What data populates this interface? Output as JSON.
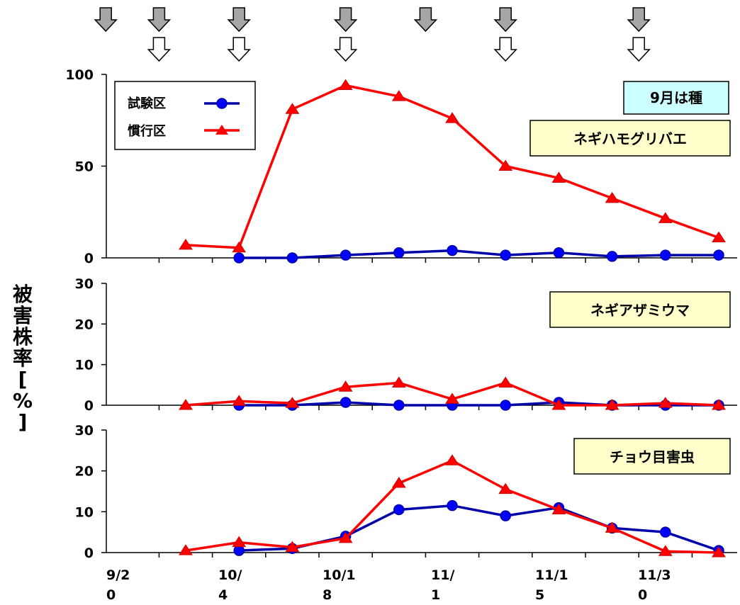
{
  "chart_data": {
    "type": "line",
    "x_tick_labels": [
      [
        "9/2",
        "0"
      ],
      [
        "10/",
        "4"
      ],
      [
        "10/1",
        "8"
      ],
      [
        "11/",
        "1"
      ],
      [
        "11/1",
        "5"
      ],
      [
        "11/3",
        "0"
      ]
    ],
    "ylabel": "被害株率[%]",
    "colors": {
      "test": "#0000aa",
      "test_marker": "#0000ff",
      "conventional": "#ff0000",
      "box_yellow": "#ffffcc",
      "box_cyan": "#ccffff",
      "arrow_gray": "#a6a6a6"
    },
    "legend": {
      "placement": "top-left",
      "entries": [
        "試験区",
        "慣行区"
      ]
    },
    "note_label": "9月は種",
    "treatment_arrows": {
      "gray": [
        -1.5,
        -0.5,
        1,
        3,
        4.5,
        6,
        8.5
      ],
      "white": [
        -0.5,
        1,
        3,
        6,
        8.5
      ]
    },
    "panels": [
      {
        "label": "ネギハモグリバエ",
        "yticks": [
          0,
          50,
          100
        ],
        "ylim": [
          0,
          100
        ],
        "series": [
          {
            "name": "試験区",
            "x": [
              1,
              2,
              3,
              4,
              5,
              6,
              7,
              8,
              9,
              10
            ],
            "values": [
              0,
              0,
              1.5,
              2.8,
              4,
              1.5,
              2.8,
              0.8,
              1.5,
              1.5
            ]
          },
          {
            "name": "慣行区",
            "x": [
              0,
              1,
              2,
              3,
              4,
              5,
              6,
              7,
              8,
              9,
              10
            ],
            "values": [
              7,
              5.5,
              81,
              94,
              88,
              76,
              50,
              43.5,
              32.5,
              21.5,
              11
            ]
          }
        ]
      },
      {
        "label": "ネギアザミウマ",
        "yticks": [
          0,
          10,
          20,
          30
        ],
        "ylim": [
          0,
          30
        ],
        "series": [
          {
            "name": "試験区",
            "x": [
              1,
              2,
              3,
              4,
              5,
              6,
              7,
              8,
              9,
              10
            ],
            "values": [
              0,
              0,
              0.7,
              0,
              0,
              0,
              0.7,
              0,
              0,
              0
            ]
          },
          {
            "name": "慣行区",
            "x": [
              0,
              1,
              2,
              3,
              4,
              5,
              6,
              7,
              8,
              9,
              10
            ],
            "values": [
              0,
              1,
              0.5,
              4.5,
              5.5,
              1.5,
              5.5,
              0,
              0,
              0.5,
              0
            ]
          }
        ]
      },
      {
        "label": "チョウ目害虫",
        "yticks": [
          0,
          10,
          20,
          30
        ],
        "ylim": [
          0,
          30
        ],
        "series": [
          {
            "name": "試験区",
            "x": [
              1,
              2,
              3,
              4,
              5,
              6,
              7,
              8,
              9,
              10
            ],
            "values": [
              0.5,
              1,
              4,
              10.5,
              11.5,
              9,
              11,
              6,
              5,
              0.5
            ]
          },
          {
            "name": "慣行区",
            "x": [
              0,
              1,
              2,
              3,
              4,
              5,
              6,
              7,
              8,
              9,
              10
            ],
            "values": [
              0.5,
              2.5,
              1.3,
              3.5,
              17,
              22.5,
              15.5,
              10.5,
              6,
              0.3,
              0
            ]
          }
        ]
      }
    ]
  }
}
